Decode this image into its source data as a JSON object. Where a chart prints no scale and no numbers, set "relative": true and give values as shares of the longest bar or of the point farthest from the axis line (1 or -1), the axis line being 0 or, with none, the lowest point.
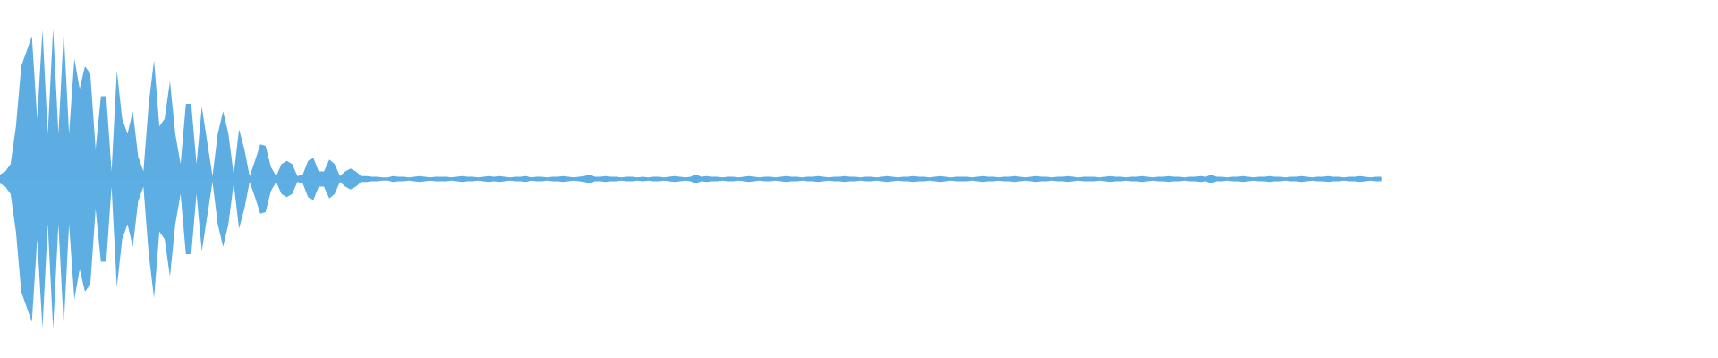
{
  "chart_data": {
    "type": "area",
    "relative": true,
    "categories": [
      null,
      null,
      null,
      null,
      null,
      null,
      null,
      null,
      null,
      null,
      null,
      null,
      null,
      null,
      null,
      null,
      null,
      null,
      null,
      null,
      null,
      null,
      null,
      null,
      null,
      null,
      null,
      null,
      null,
      null,
      null,
      null,
      null,
      null,
      null,
      null,
      null,
      null,
      null,
      null,
      null,
      null,
      null,
      null,
      null,
      null,
      null,
      null,
      null,
      null,
      null,
      null,
      null,
      null,
      null,
      null,
      null,
      null,
      null,
      null,
      null,
      null,
      null,
      null,
      null,
      null,
      null,
      null,
      null,
      null,
      null,
      null,
      null,
      null,
      null,
      null,
      null,
      null,
      null,
      null,
      null,
      null,
      null,
      null,
      null,
      null,
      null,
      null,
      null,
      null,
      null,
      null,
      null,
      null,
      null,
      null,
      null,
      null,
      null,
      null,
      null,
      null,
      null,
      null,
      null,
      null,
      null,
      null,
      null,
      null,
      null,
      null,
      null,
      null,
      null,
      null,
      null,
      null,
      null,
      null,
      null,
      null,
      null,
      null,
      null,
      null,
      null,
      null,
      null,
      null,
      null,
      null,
      null,
      null,
      null,
      null,
      null,
      null,
      null,
      null,
      null,
      null,
      null,
      null,
      null,
      null,
      null,
      null,
      null,
      null,
      null,
      null,
      null,
      null,
      null,
      null,
      null,
      null,
      null,
      null,
      null,
      null,
      null,
      null,
      null,
      null,
      null,
      null,
      null,
      null,
      null,
      null,
      null,
      null,
      null,
      null,
      null,
      null,
      null,
      null,
      null,
      null,
      null,
      null,
      null,
      null,
      null,
      null,
      null,
      null,
      null,
      null,
      null,
      null,
      null,
      null,
      null,
      null,
      null,
      null,
      null,
      null,
      null,
      null,
      null,
      null,
      null,
      null,
      null,
      null,
      null,
      null,
      null,
      null,
      null,
      null,
      null,
      null,
      null,
      null,
      null,
      null,
      null,
      null,
      null,
      null,
      null,
      null,
      null,
      null,
      null,
      null,
      null,
      null,
      null,
      null,
      null,
      null,
      null,
      null,
      null,
      null,
      null,
      null,
      null,
      null,
      null,
      null,
      null,
      null,
      null,
      null,
      null,
      null,
      null,
      null,
      null,
      null,
      null,
      null,
      null
    ],
    "series": [
      {
        "color": "#5dade2",
        "values": [
          0.03,
          0.05,
          0.1,
          0.35,
          0.75,
          0.85,
          0.95,
          0.4,
          0.99,
          0.3,
          1,
          0.3,
          0.98,
          0.3,
          0.8,
          0.6,
          0.75,
          0.7,
          0.2,
          0.55,
          0.55,
          0.05,
          0.72,
          0.4,
          0.3,
          0.45,
          0.15,
          0.05,
          0.5,
          0.79,
          0.35,
          0.4,
          0.65,
          0.3,
          0.1,
          0.5,
          0.5,
          0.1,
          0.48,
          0.25,
          0.02,
          0.3,
          0.45,
          0.3,
          0.03,
          0.33,
          0.2,
          0.02,
          0.12,
          0.23,
          0.22,
          0.08,
          0.02,
          0.1,
          0.12,
          0.1,
          0.02,
          0.03,
          0.12,
          0.14,
          0.05,
          0.05,
          0.13,
          0.1,
          0.02,
          0.05,
          0.07,
          0.05,
          0.02,
          0.02,
          0.015,
          0.015,
          0.01,
          0.01,
          0.02,
          0.015,
          0.015,
          0.01,
          0.015,
          0.02,
          0.015,
          0.01,
          0.015,
          0.015,
          0.015,
          0.01,
          0.015,
          0.02,
          0.015,
          0.015,
          0.01,
          0.015,
          0.02,
          0.015,
          0.02,
          0.015,
          0.01,
          0.015,
          0.015,
          0.02,
          0.01,
          0.015,
          0.015,
          0.01,
          0.015,
          0.015,
          0.02,
          0.015,
          0.01,
          0.015,
          0.02,
          0.03,
          0.015,
          0.015,
          0.02,
          0.015,
          0.015,
          0.01,
          0.015,
          0.015,
          0.01,
          0.015,
          0.01,
          0.015,
          0.015,
          0.01,
          0.015,
          0.02,
          0.015,
          0.01,
          0.015,
          0.03,
          0.015,
          0.02,
          0.015,
          0.015,
          0.01,
          0.015,
          0.015,
          0.01,
          0.015,
          0.02,
          0.015,
          0.01,
          0.015,
          0.015,
          0.01,
          0.015,
          0.02,
          0.015,
          0.015,
          0.01,
          0.015,
          0.015,
          0.02,
          0.015,
          0.01,
          0.015,
          0.015,
          0.02,
          0.015,
          0.015,
          0.01,
          0.015,
          0.015,
          0.01,
          0.015,
          0.02,
          0.015,
          0.01,
          0.015,
          0.015,
          0.02,
          0.015,
          0.015,
          0.01,
          0.015,
          0.02,
          0.015,
          0.01,
          0.015,
          0.015,
          0.015,
          0.01,
          0.015,
          0.02,
          0.015,
          0.015,
          0.01,
          0.015,
          0.015,
          0.02,
          0.015,
          0.01,
          0.015,
          0.02,
          0.015,
          0.015,
          0.01,
          0.015,
          0.015,
          0.02,
          0.015,
          0.01,
          0.015,
          0.015,
          0.015,
          0.01,
          0.015,
          0.02,
          0.015,
          0.015,
          0.01,
          0.015,
          0.015,
          0.02,
          0.015,
          0.01,
          0.015,
          0.015,
          0.02,
          0.015,
          0.015,
          0.01,
          0.015,
          0.015,
          0.02,
          0.015,
          0.03,
          0.015,
          0.015,
          0.01,
          0.015,
          0.015,
          0.02,
          0.015,
          0.01,
          0.015,
          0.015,
          0.02,
          0.015,
          0.015,
          0.01,
          0.015,
          0.015,
          0.02,
          0.015,
          0.01,
          0.015,
          0.015,
          0.02,
          0.015,
          0.015,
          0.01,
          0.015,
          0.015,
          0.02,
          0.015,
          0.01,
          0.015,
          0.015
        ]
      },
      {
        "color": "#5caee3",
        "values": [
          -0.03,
          -0.05,
          -0.1,
          -0.35,
          -0.75,
          -0.85,
          -0.95,
          -0.4,
          -0.99,
          -0.3,
          -1,
          -0.3,
          -0.98,
          -0.3,
          -0.8,
          -0.6,
          -0.75,
          -0.7,
          -0.2,
          -0.55,
          -0.55,
          -0.05,
          -0.72,
          -0.4,
          -0.3,
          -0.45,
          -0.15,
          -0.05,
          -0.5,
          -0.79,
          -0.35,
          -0.4,
          -0.65,
          -0.3,
          -0.1,
          -0.5,
          -0.5,
          -0.1,
          -0.48,
          -0.25,
          -0.02,
          -0.3,
          -0.45,
          -0.3,
          -0.03,
          -0.33,
          -0.2,
          -0.02,
          -0.12,
          -0.23,
          -0.22,
          -0.08,
          -0.02,
          -0.1,
          -0.12,
          -0.1,
          -0.02,
          -0.03,
          -0.12,
          -0.14,
          -0.05,
          -0.05,
          -0.13,
          -0.1,
          -0.02,
          -0.05,
          -0.07,
          -0.05,
          -0.02,
          -0.02,
          -0.015,
          -0.015,
          -0.01,
          -0.01,
          -0.02,
          -0.015,
          -0.015,
          -0.01,
          -0.015,
          -0.02,
          -0.015,
          -0.01,
          -0.015,
          -0.015,
          -0.015,
          -0.01,
          -0.015,
          -0.02,
          -0.015,
          -0.015,
          -0.01,
          -0.015,
          -0.02,
          -0.015,
          -0.02,
          -0.015,
          -0.01,
          -0.015,
          -0.015,
          -0.02,
          -0.01,
          -0.015,
          -0.015,
          -0.01,
          -0.015,
          -0.015,
          -0.02,
          -0.015,
          -0.01,
          -0.015,
          -0.02,
          -0.03,
          -0.015,
          -0.015,
          -0.02,
          -0.015,
          -0.015,
          -0.01,
          -0.015,
          -0.015,
          -0.01,
          -0.015,
          -0.01,
          -0.015,
          -0.015,
          -0.01,
          -0.015,
          -0.02,
          -0.015,
          -0.01,
          -0.015,
          -0.03,
          -0.015,
          -0.02,
          -0.015,
          -0.015,
          -0.01,
          -0.015,
          -0.015,
          -0.01,
          -0.015,
          -0.02,
          -0.015,
          -0.01,
          -0.015,
          -0.015,
          -0.01,
          -0.015,
          -0.02,
          -0.015,
          -0.015,
          -0.01,
          -0.015,
          -0.015,
          -0.02,
          -0.015,
          -0.01,
          -0.015,
          -0.015,
          -0.02,
          -0.015,
          -0.015,
          -0.01,
          -0.015,
          -0.015,
          -0.01,
          -0.015,
          -0.02,
          -0.015,
          -0.01,
          -0.015,
          -0.015,
          -0.02,
          -0.015,
          -0.015,
          -0.01,
          -0.015,
          -0.02,
          -0.015,
          -0.01,
          -0.015,
          -0.015,
          -0.015,
          -0.01,
          -0.015,
          -0.02,
          -0.015,
          -0.015,
          -0.01,
          -0.015,
          -0.015,
          -0.02,
          -0.015,
          -0.01,
          -0.015,
          -0.02,
          -0.015,
          -0.015,
          -0.01,
          -0.015,
          -0.015,
          -0.02,
          -0.015,
          -0.01,
          -0.015,
          -0.015,
          -0.015,
          -0.01,
          -0.015,
          -0.02,
          -0.015,
          -0.015,
          -0.01,
          -0.015,
          -0.015,
          -0.02,
          -0.015,
          -0.01,
          -0.015,
          -0.015,
          -0.02,
          -0.015,
          -0.015,
          -0.01,
          -0.015,
          -0.015,
          -0.02,
          -0.015,
          -0.03,
          -0.015,
          -0.015,
          -0.01,
          -0.015,
          -0.015,
          -0.02,
          -0.015,
          -0.01,
          -0.015,
          -0.015,
          -0.02,
          -0.015,
          -0.015,
          -0.01,
          -0.015,
          -0.015,
          -0.02,
          -0.015,
          -0.01,
          -0.015,
          -0.015,
          -0.02,
          -0.015,
          -0.015,
          -0.01,
          -0.015,
          -0.015,
          -0.02,
          -0.015,
          -0.01,
          -0.015,
          -0.015
        ]
      }
    ]
  }
}
